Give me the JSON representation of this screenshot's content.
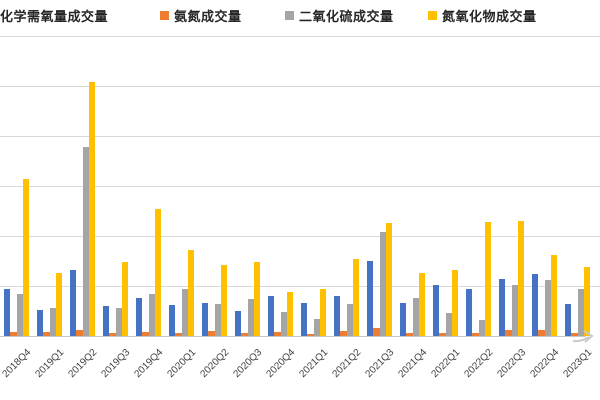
{
  "legend": {
    "items": [
      {
        "label": "化学需氧量成交量",
        "color": "#4472C4",
        "swatch_clipped_at_left_edge": true
      },
      {
        "label": "氨氮成交量",
        "color": "#ED7D31",
        "swatch_clipped_at_left_edge": false
      },
      {
        "label": "二氧化硫成交量",
        "color": "#A5A5A5",
        "swatch_clipped_at_left_edge": false
      },
      {
        "label": "氮氧化物成交量",
        "color": "#FFC000",
        "swatch_clipped_at_left_edge": false
      }
    ]
  },
  "chart_data": {
    "type": "bar",
    "title": "",
    "xlabel": "",
    "ylabel": "",
    "categories": [
      "2018Q4",
      "2019Q1",
      "2019Q2",
      "2019Q3",
      "2019Q4",
      "2020Q1",
      "2020Q2",
      "2020Q3",
      "2020Q4",
      "2021Q1",
      "2021Q2",
      "2021Q3",
      "2021Q4",
      "2022Q1",
      "2022Q2",
      "2022Q3",
      "2022Q4",
      "2023Q1"
    ],
    "series": [
      {
        "name": "化学需氧量成交量",
        "color": "#4472C4",
        "values": [
          0.93,
          0.51,
          1.31,
          0.6,
          0.76,
          0.61,
          0.65,
          0.5,
          0.8,
          0.65,
          0.79,
          1.49,
          0.66,
          1.01,
          0.93,
          1.15,
          1.23,
          0.63
        ]
      },
      {
        "name": "氨氮成交量",
        "color": "#ED7D31",
        "values": [
          0.08,
          0.08,
          0.12,
          0.06,
          0.08,
          0.05,
          0.09,
          0.05,
          0.07,
          0.04,
          0.1,
          0.16,
          0.05,
          0.05,
          0.06,
          0.11,
          0.12,
          0.06
        ]
      },
      {
        "name": "二氧化硫成交量",
        "color": "#A5A5A5",
        "values": [
          0.84,
          0.55,
          3.78,
          0.56,
          0.84,
          0.93,
          0.63,
          0.73,
          0.47,
          0.33,
          0.64,
          2.08,
          0.76,
          0.46,
          0.31,
          1.01,
          1.13,
          0.94
        ]
      },
      {
        "name": "氮氧化物成交量",
        "color": "#FFC000",
        "values": [
          3.14,
          1.26,
          5.08,
          1.48,
          2.55,
          1.72,
          1.42,
          1.47,
          0.87,
          0.93,
          1.54,
          2.26,
          1.26,
          1.31,
          2.28,
          2.3,
          1.61,
          1.38
        ]
      }
    ],
    "ylim": [
      0,
      6
    ],
    "value_units": "relative-gridline-units (y-axis tick labels cropped out of view)",
    "gridlines": "horizontal",
    "gridline_step": 1,
    "legend_position": "top",
    "x_tick_label_rotation_deg": -45,
    "colors": {
      "gridline": "#D9D9D9",
      "axis_line": "#C6C6C6",
      "x_tick_text": "#3F3F3F",
      "legend_text": "#262626",
      "background": "#FFFFFF"
    }
  }
}
